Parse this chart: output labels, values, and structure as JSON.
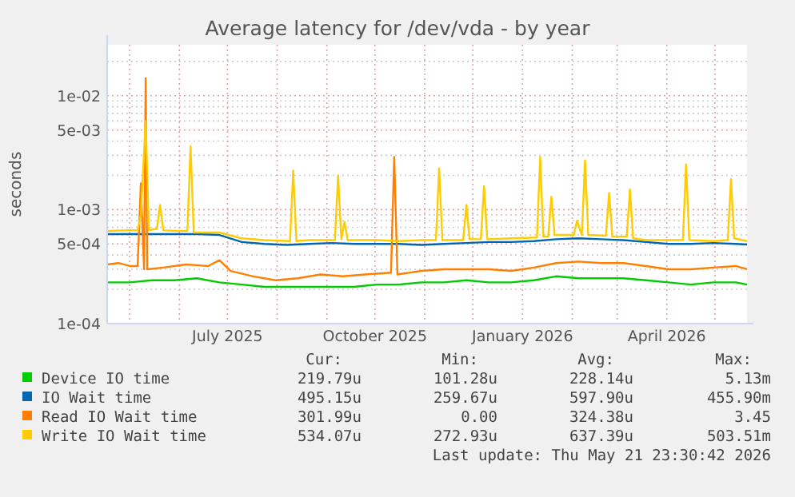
{
  "chart_data": {
    "type": "line",
    "title": "Average latency for /dev/vda - by year",
    "ylabel": "seconds",
    "log": "y",
    "grid": true,
    "legend": "bottom",
    "marker": "none",
    "line_style": "solid",
    "xlim": [
      "2025-04-17",
      "2026-05-21"
    ],
    "xticks": [
      {
        "value": "2025-05-01",
        "label": null
      },
      {
        "value": "2025-06-01",
        "label": null
      },
      {
        "value": "2025-07-01",
        "label": "July 2025"
      },
      {
        "value": "2025-08-01",
        "label": null
      },
      {
        "value": "2025-09-01",
        "label": null
      },
      {
        "value": "2025-10-01",
        "label": "October 2025"
      },
      {
        "value": "2025-11-01",
        "label": null
      },
      {
        "value": "2025-12-01",
        "label": null
      },
      {
        "value": "2026-01-01",
        "label": "January 2026"
      },
      {
        "value": "2026-02-01",
        "label": null
      },
      {
        "value": "2026-03-01",
        "label": null
      },
      {
        "value": "2026-04-01",
        "label": "April 2026"
      },
      {
        "value": "2026-05-01",
        "label": null
      }
    ],
    "ylim": [
      0.0001,
      0.028
    ],
    "yticks": [
      {
        "value": 0.0001,
        "label": "1e-04"
      },
      {
        "value": 0.0002,
        "label": null
      },
      {
        "value": 0.0003,
        "label": null
      },
      {
        "value": 0.0004,
        "label": null
      },
      {
        "value": 0.0005,
        "label": "5e-04"
      },
      {
        "value": 0.0006,
        "label": null
      },
      {
        "value": 0.0007,
        "label": null
      },
      {
        "value": 0.0008,
        "label": null
      },
      {
        "value": 0.0009,
        "label": null
      },
      {
        "value": 0.001,
        "label": "1e-03"
      },
      {
        "value": 0.002,
        "label": null
      },
      {
        "value": 0.003,
        "label": null
      },
      {
        "value": 0.004,
        "label": null
      },
      {
        "value": 0.005,
        "label": "5e-03"
      },
      {
        "value": 0.006,
        "label": null
      },
      {
        "value": 0.007,
        "label": null
      },
      {
        "value": 0.008,
        "label": null
      },
      {
        "value": 0.009,
        "label": null
      },
      {
        "value": 0.01,
        "label": "1e-02"
      },
      {
        "value": 0.02,
        "label": null
      }
    ],
    "x": [
      "2025-04-17",
      "2025-05-01",
      "2025-05-15",
      "2025-05-29",
      "2025-06-12",
      "2025-06-26",
      "2025-07-10",
      "2025-07-24",
      "2025-08-07",
      "2025-08-21",
      "2025-09-04",
      "2025-09-18",
      "2025-10-02",
      "2025-10-16",
      "2025-10-30",
      "2025-11-13",
      "2025-11-27",
      "2025-12-11",
      "2025-12-25",
      "2026-01-08",
      "2026-01-22",
      "2026-02-05",
      "2026-02-19",
      "2026-03-05",
      "2026-03-19",
      "2026-04-02",
      "2026-04-16",
      "2026-04-30",
      "2026-05-14",
      "2026-05-21"
    ],
    "series": [
      {
        "name": "Device IO time",
        "color": "#00cc00",
        "values": [
          0.00023,
          0.00023,
          0.00024,
          0.00024,
          0.00025,
          0.00023,
          0.00022,
          0.00021,
          0.00021,
          0.00021,
          0.00021,
          0.00021,
          0.00022,
          0.00022,
          0.00023,
          0.00023,
          0.00024,
          0.00023,
          0.00023,
          0.00024,
          0.00026,
          0.00025,
          0.00025,
          0.00025,
          0.00024,
          0.00023,
          0.00022,
          0.00023,
          0.00023,
          0.00022
        ]
      },
      {
        "name": "IO Wait time",
        "color": "#0066b3",
        "values": [
          0.00061,
          0.00061,
          0.00061,
          0.00061,
          0.00061,
          0.0006,
          0.00052,
          0.0005,
          0.00049,
          0.0005,
          0.00051,
          0.0005,
          0.0005,
          0.0005,
          0.00049,
          0.0005,
          0.00051,
          0.00052,
          0.00052,
          0.00053,
          0.00055,
          0.00056,
          0.00055,
          0.00054,
          0.00052,
          0.0005,
          0.0005,
          0.00051,
          0.0005,
          0.000495
        ]
      },
      {
        "name": "Read IO Wait time",
        "color": "#ff8000",
        "x": [
          "2025-04-17",
          "2025-04-24",
          "2025-05-01",
          "2025-05-06",
          "2025-05-08",
          "2025-05-10",
          "2025-05-11",
          "2025-05-12",
          "2025-05-22",
          "2025-06-05",
          "2025-06-19",
          "2025-06-26",
          "2025-07-03",
          "2025-07-17",
          "2025-07-31",
          "2025-08-14",
          "2025-08-28",
          "2025-09-11",
          "2025-09-25",
          "2025-10-11",
          "2025-10-13",
          "2025-10-15",
          "2025-10-30",
          "2025-11-13",
          "2025-11-27",
          "2025-12-11",
          "2025-12-25",
          "2026-01-08",
          "2026-01-22",
          "2026-02-05",
          "2026-02-19",
          "2026-03-05",
          "2026-03-19",
          "2026-04-02",
          "2026-04-16",
          "2026-04-30",
          "2026-05-14",
          "2026-05-21"
        ],
        "values": [
          0.00033,
          0.00034,
          0.00032,
          0.00032,
          0.0017,
          0.0003,
          0.0142,
          0.0003,
          0.00031,
          0.00033,
          0.00032,
          0.00036,
          0.00029,
          0.00026,
          0.00024,
          0.00025,
          0.00027,
          0.00026,
          0.00027,
          0.00028,
          0.0029,
          0.00027,
          0.00029,
          0.0003,
          0.0003,
          0.0003,
          0.00029,
          0.00031,
          0.00034,
          0.00035,
          0.00034,
          0.00034,
          0.00032,
          0.0003,
          0.0003,
          0.00031,
          0.00032,
          0.0003
        ]
      },
      {
        "name": "Write IO Wait time",
        "color": "#ffcc00",
        "x": [
          "2025-04-17",
          "2025-05-01",
          "2025-05-06",
          "2025-05-08",
          "2025-05-11",
          "2025-05-13",
          "2025-05-18",
          "2025-05-20",
          "2025-05-22",
          "2025-05-29",
          "2025-06-06",
          "2025-06-08",
          "2025-06-10",
          "2025-06-26",
          "2025-07-10",
          "2025-07-24",
          "2025-08-09",
          "2025-08-11",
          "2025-08-13",
          "2025-08-21",
          "2025-09-06",
          "2025-09-08",
          "2025-09-10",
          "2025-09-12",
          "2025-09-14",
          "2025-10-02",
          "2025-10-16",
          "2025-10-30",
          "2025-11-08",
          "2025-11-10",
          "2025-11-12",
          "2025-11-25",
          "2025-11-27",
          "2025-11-29",
          "2025-12-06",
          "2025-12-08",
          "2025-12-10",
          "2025-12-25",
          "2026-01-10",
          "2026-01-12",
          "2026-01-14",
          "2026-01-17",
          "2026-01-19",
          "2026-01-21",
          "2026-02-02",
          "2026-02-04",
          "2026-02-07",
          "2026-02-09",
          "2026-02-11",
          "2026-02-22",
          "2026-02-24",
          "2026-02-26",
          "2026-03-07",
          "2026-03-09",
          "2026-03-11",
          "2026-03-19",
          "2026-04-02",
          "2026-04-11",
          "2026-04-13",
          "2026-04-15",
          "2026-04-30",
          "2026-05-09",
          "2026-05-11",
          "2026-05-13",
          "2026-05-21"
        ],
        "values": [
          0.00065,
          0.00066,
          0.00066,
          0.0009,
          0.006,
          0.00066,
          0.00068,
          0.0011,
          0.00066,
          0.00065,
          0.00065,
          0.0036,
          0.00063,
          0.00063,
          0.00056,
          0.00054,
          0.00053,
          0.0022,
          0.00053,
          0.00054,
          0.00054,
          0.002,
          0.00055,
          0.00078,
          0.00054,
          0.00054,
          0.00053,
          0.00054,
          0.00054,
          0.0023,
          0.00054,
          0.00054,
          0.0011,
          0.00055,
          0.00055,
          0.0016,
          0.00055,
          0.00056,
          0.00057,
          0.0029,
          0.00058,
          0.00058,
          0.0013,
          0.0006,
          0.0006,
          0.0008,
          0.0006,
          0.0027,
          0.0006,
          0.00059,
          0.0014,
          0.00058,
          0.00058,
          0.0015,
          0.00056,
          0.00054,
          0.00054,
          0.00054,
          0.0025,
          0.00054,
          0.00053,
          0.00054,
          0.00185,
          0.00056,
          0.00053
        ]
      }
    ],
    "annotations": [
      "Cur:",
      "Min:",
      "Avg:",
      "Max:",
      "219.79u",
      "101.28u",
      "228.14u",
      "5.13m",
      "495.15u",
      "259.67u",
      "597.90u",
      "455.90m",
      "301.99u",
      "0.00",
      "324.38u",
      "3.45",
      "534.07u",
      "272.93u",
      "637.39u",
      "503.51m",
      "Last update: Thu May 21 23:30:42 2026"
    ]
  }
}
